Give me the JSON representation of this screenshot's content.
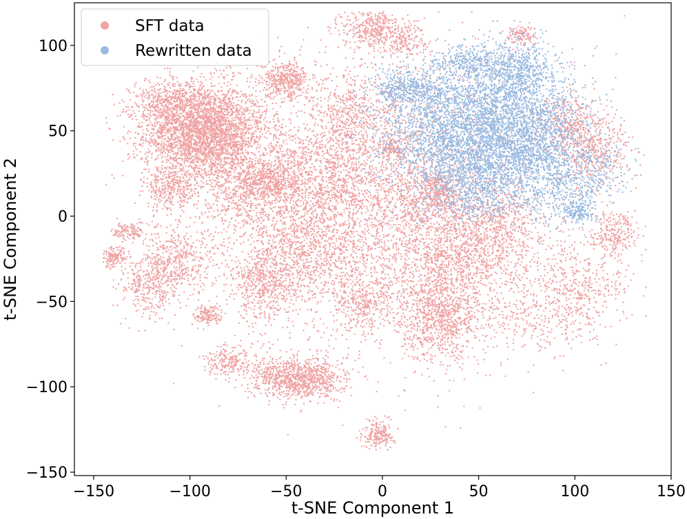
{
  "chart_data": {
    "type": "scatter",
    "title": "",
    "xlabel": "t-SNE Component 1",
    "ylabel": "t-SNE Component 2",
    "xlim": [
      -160,
      150
    ],
    "ylim": [
      -152,
      125
    ],
    "xticks": [
      -150,
      -100,
      -50,
      0,
      50,
      100,
      150
    ],
    "yticks": [
      -150,
      -100,
      -50,
      0,
      50,
      100
    ],
    "xtick_labels": [
      "−150",
      "−100",
      "−50",
      "0",
      "50",
      "100",
      "150"
    ],
    "ytick_labels": [
      "−150",
      "−100",
      "−50",
      "0",
      "50",
      "100"
    ],
    "grid": false,
    "legend_position": "top-left",
    "series": [
      {
        "name": "SFT data",
        "color": "#f0a3a3",
        "clusters": [
          [
            -92,
            48,
            16,
            14,
            3200
          ],
          [
            -110,
            65,
            10,
            8,
            500
          ],
          [
            -110,
            15,
            7,
            6,
            300
          ],
          [
            -50,
            80,
            6,
            5,
            400
          ],
          [
            -60,
            20,
            8,
            7,
            500
          ],
          [
            -5,
            110,
            8,
            6,
            400
          ],
          [
            12,
            103,
            6,
            5,
            150
          ],
          [
            72,
            106,
            4,
            3,
            120
          ],
          [
            5,
            40,
            4,
            3,
            100
          ],
          [
            -140,
            -24,
            4,
            3,
            150
          ],
          [
            -132,
            -9,
            4,
            3,
            120
          ],
          [
            -90,
            -58,
            4,
            3,
            150
          ],
          [
            -50,
            -95,
            10,
            6,
            600
          ],
          [
            -35,
            -95,
            8,
            6,
            400
          ],
          [
            -2,
            -128,
            4,
            4,
            200
          ],
          [
            -60,
            -40,
            10,
            10,
            500
          ],
          [
            -10,
            -50,
            8,
            8,
            300
          ],
          [
            30,
            -60,
            10,
            12,
            800
          ],
          [
            40,
            -25,
            18,
            15,
            900
          ],
          [
            60,
            -5,
            14,
            12,
            500
          ],
          [
            -40,
            -20,
            18,
            15,
            900
          ],
          [
            -30,
            20,
            18,
            16,
            900
          ],
          [
            20,
            10,
            14,
            14,
            500
          ],
          [
            -120,
            -40,
            8,
            10,
            400
          ],
          [
            -105,
            -25,
            10,
            10,
            400
          ],
          [
            110,
            40,
            10,
            12,
            500
          ],
          [
            120,
            -10,
            6,
            6,
            250
          ],
          [
            100,
            -40,
            14,
            12,
            400
          ],
          [
            95,
            55,
            8,
            8,
            250
          ],
          [
            30,
            15,
            5,
            5,
            200
          ],
          [
            -80,
            -85,
            6,
            5,
            200
          ],
          [
            -15,
            60,
            10,
            10,
            300
          ],
          [
            -75,
            10,
            10,
            10,
            300
          ],
          [
            0,
            -10,
            40,
            40,
            2200
          ],
          [
            -20,
            45,
            40,
            30,
            1200
          ],
          [
            80,
            -60,
            20,
            10,
            300
          ]
        ]
      },
      {
        "name": "Rewritten data",
        "color": "#9bbae0",
        "clusters": [
          [
            65,
            60,
            20,
            18,
            1800
          ],
          [
            55,
            30,
            18,
            14,
            1200
          ],
          [
            30,
            60,
            18,
            14,
            800
          ],
          [
            15,
            75,
            10,
            6,
            400
          ],
          [
            45,
            90,
            10,
            5,
            300
          ],
          [
            70,
            85,
            8,
            8,
            400
          ],
          [
            95,
            15,
            12,
            10,
            400
          ],
          [
            102,
            3,
            4,
            3,
            150
          ],
          [
            85,
            40,
            10,
            10,
            300
          ],
          [
            45,
            10,
            10,
            8,
            200
          ],
          [
            115,
            30,
            8,
            8,
            120
          ],
          [
            30,
            35,
            14,
            10,
            300
          ],
          [
            55,
            45,
            25,
            20,
            900
          ]
        ]
      }
    ]
  }
}
